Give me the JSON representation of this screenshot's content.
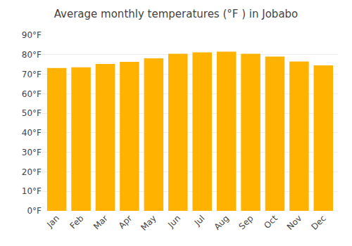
{
  "chart_data": {
    "type": "bar",
    "title": "Average monthly temperatures (°F ) in Jobabo",
    "categories": [
      "Jan",
      "Feb",
      "Mar",
      "Apr",
      "May",
      "Jun",
      "Jul",
      "Aug",
      "Sep",
      "Oct",
      "Nov",
      "Dec"
    ],
    "values": [
      73.2,
      73.5,
      75.2,
      76.3,
      78.1,
      80.5,
      81.2,
      81.5,
      80.5,
      79.0,
      76.5,
      74.5
    ],
    "color": "#FFB300",
    "ylim": [
      0,
      90
    ],
    "yticks": [
      {
        "value": 0,
        "label": "0°F"
      },
      {
        "value": 10,
        "label": "10°F"
      },
      {
        "value": 20,
        "label": "20°F"
      },
      {
        "value": 30,
        "label": "30°F"
      },
      {
        "value": 40,
        "label": "40°F"
      },
      {
        "value": 50,
        "label": "50°F"
      },
      {
        "value": 60,
        "label": "60°F"
      },
      {
        "value": 70,
        "label": "70°F"
      },
      {
        "value": 80,
        "label": "80°F"
      },
      {
        "value": 90,
        "label": "90°F"
      }
    ],
    "grid": true
  }
}
